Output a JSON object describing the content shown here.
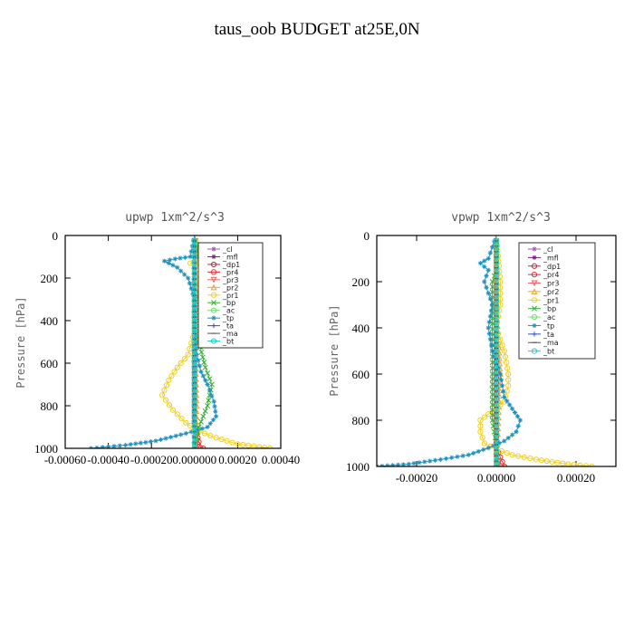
{
  "page_title": "taus_oob  BUDGET at25E,0N",
  "chart_data": [
    {
      "type": "line",
      "title": "upwp   1xm^2/s^3",
      "ylabel": "Pressure [hPa]",
      "xlim": [
        -0.0006,
        0.0004
      ],
      "ylim": [
        1000,
        0
      ],
      "x_ticks": [
        -0.0006,
        -0.0004,
        -0.0002,
        0.0,
        0.0002,
        0.0004
      ],
      "x_tick_labels": [
        "-0.00060",
        "-0.00040",
        "-0.00020",
        "0.000000",
        "0.00020",
        "0.00040"
      ],
      "y_ticks": [
        0,
        200,
        400,
        600,
        800,
        1000
      ],
      "y_tick_labels": [
        "0",
        "200",
        "400",
        "600",
        "800",
        "1000"
      ],
      "legend_position": "top-right",
      "series": [
        {
          "name": "_cl",
          "color": "#9b59b6",
          "marker": "*",
          "points": [
            [
              0,
              1000
            ],
            [
              0,
              0
            ]
          ]
        },
        {
          "name": "_mfl",
          "color": "#7a1f7a",
          "marker": "*",
          "points": [
            [
              0,
              1000
            ],
            [
              0,
              0
            ]
          ]
        },
        {
          "name": "_dp1",
          "color": "#b03040",
          "marker": "o",
          "points": [
            [
              2e-05,
              1000
            ],
            [
              1e-05,
              960
            ],
            [
              0,
              900
            ],
            [
              0,
              0
            ]
          ]
        },
        {
          "name": "_pr4",
          "color": "#e03030",
          "marker": "o",
          "points": [
            [
              4e-05,
              1000
            ],
            [
              2e-05,
              970
            ],
            [
              1e-05,
              930
            ],
            [
              0,
              880
            ],
            [
              0,
              0
            ]
          ]
        },
        {
          "name": "_pr3",
          "color": "#f06060",
          "marker": "v",
          "points": [
            [
              2e-05,
              1000
            ],
            [
              0,
              950
            ],
            [
              0,
              0
            ]
          ]
        },
        {
          "name": "_pr2",
          "color": "#f0a030",
          "marker": "^",
          "points": [
            [
              0,
              1000
            ],
            [
              1e-05,
              800
            ],
            [
              0,
              400
            ],
            [
              3e-05,
              160
            ],
            [
              6e-05,
              130
            ],
            [
              2e-05,
              100
            ],
            [
              0,
              0
            ]
          ]
        },
        {
          "name": "_pr1",
          "color": "#f0d020",
          "marker": "o",
          "points": [
            [
              0.00035,
              1000
            ],
            [
              0.0002,
              980
            ],
            [
              0.0001,
              950
            ],
            [
              2e-05,
              920
            ],
            [
              -4e-05,
              880
            ],
            [
              -0.0001,
              820
            ],
            [
              -0.00015,
              750
            ],
            [
              -0.00012,
              680
            ],
            [
              -8e-05,
              620
            ],
            [
              -3e-05,
              560
            ],
            [
              0,
              450
            ],
            [
              0,
              250
            ],
            [
              2e-05,
              180
            ],
            [
              5e-05,
              150
            ],
            [
              -2e-05,
              130
            ],
            [
              3e-05,
              110
            ],
            [
              0,
              0
            ]
          ]
        },
        {
          "name": "_bp",
          "color": "#30b030",
          "marker": "x",
          "points": [
            [
              0,
              1000
            ],
            [
              2e-05,
              900
            ],
            [
              6e-05,
              800
            ],
            [
              8e-05,
              700
            ],
            [
              5e-05,
              620
            ],
            [
              2e-05,
              500
            ],
            [
              2e-05,
              300
            ],
            [
              5e-05,
              150
            ],
            [
              2e-05,
              100
            ],
            [
              0,
              0
            ]
          ]
        },
        {
          "name": "_ac",
          "color": "#70e070",
          "marker": "o",
          "points": [
            [
              0,
              1000
            ],
            [
              0,
              0
            ]
          ]
        },
        {
          "name": "_tp",
          "color": "#2090c0",
          "marker": "*",
          "points": [
            [
              -0.00048,
              1000
            ],
            [
              -0.00032,
              985
            ],
            [
              -0.00018,
              965
            ],
            [
              -4e-05,
              930
            ],
            [
              6e-05,
              900
            ],
            [
              0.0001,
              850
            ],
            [
              9e-05,
              780
            ],
            [
              6e-05,
              700
            ],
            [
              3e-05,
              640
            ],
            [
              1e-05,
              560
            ],
            [
              0,
              450
            ],
            [
              0,
              300
            ],
            [
              -3e-05,
              200
            ],
            [
              -8e-05,
              150
            ],
            [
              -0.00012,
              130
            ],
            [
              -0.00014,
              120
            ],
            [
              -9e-05,
              110
            ],
            [
              -2e-05,
              100
            ],
            [
              0,
              0
            ]
          ]
        },
        {
          "name": "_ta",
          "color": "#3050d0",
          "marker": "+",
          "points": [
            [
              0,
              1000
            ],
            [
              0,
              0
            ]
          ]
        },
        {
          "name": "_ma",
          "color": "#505050",
          "marker": "-",
          "points": [
            [
              0,
              1000
            ],
            [
              0,
              0
            ]
          ]
        },
        {
          "name": "_bt",
          "color": "#20d0d0",
          "marker": "o",
          "points": [
            [
              0,
              1000
            ],
            [
              0,
              0
            ]
          ]
        }
      ]
    },
    {
      "type": "line",
      "title": "vpwp   1xm^2/s^3",
      "ylabel": "Pressure [hPa]",
      "xlim": [
        -0.0003,
        0.0003
      ],
      "ylim": [
        1000,
        0
      ],
      "x_ticks": [
        -0.0002,
        0.0,
        0.0002
      ],
      "x_tick_labels": [
        "-0.00020",
        "0.00000",
        "0.00020"
      ],
      "y_ticks": [
        0,
        200,
        400,
        600,
        800,
        1000
      ],
      "y_tick_labels": [
        "0",
        "200",
        "400",
        "600",
        "800",
        "1000"
      ],
      "legend_position": "top-right",
      "series": [
        {
          "name": "_cl",
          "color": "#9b59b6",
          "marker": "*",
          "points": [
            [
              0,
              1000
            ],
            [
              0,
              0
            ]
          ]
        },
        {
          "name": "_mfl",
          "color": "#7a1f7a",
          "marker": "*",
          "points": [
            [
              0,
              1000
            ],
            [
              0,
              0
            ]
          ]
        },
        {
          "name": "_dp1",
          "color": "#b03040",
          "marker": "o",
          "points": [
            [
              1e-05,
              1000
            ],
            [
              0,
              950
            ],
            [
              0,
              0
            ]
          ]
        },
        {
          "name": "_pr4",
          "color": "#e03030",
          "marker": "o",
          "points": [
            [
              2e-05,
              1000
            ],
            [
              1e-05,
              960
            ],
            [
              0,
              920
            ],
            [
              0,
              0
            ]
          ]
        },
        {
          "name": "_pr3",
          "color": "#f06060",
          "marker": "v",
          "points": [
            [
              1e-05,
              1000
            ],
            [
              0,
              960
            ],
            [
              0,
              0
            ]
          ]
        },
        {
          "name": "_pr2",
          "color": "#f0a030",
          "marker": "^",
          "points": [
            [
              0,
              1000
            ],
            [
              1e-05,
              600
            ],
            [
              0,
              300
            ],
            [
              0,
              0
            ]
          ]
        },
        {
          "name": "_pr1",
          "color": "#f0d020",
          "marker": "o",
          "points": [
            [
              0.00024,
              1000
            ],
            [
              0.00018,
              990
            ],
            [
              0.0001,
              970
            ],
            [
              4e-05,
              950
            ],
            [
              0,
              925
            ],
            [
              -3e-05,
              900
            ],
            [
              -4e-05,
              850
            ],
            [
              -4e-05,
              800
            ],
            [
              -1e-05,
              760
            ],
            [
              2e-05,
              720
            ],
            [
              3e-05,
              650
            ],
            [
              3e-05,
              600
            ],
            [
              2e-05,
              500
            ],
            [
              0,
              400
            ],
            [
              1e-05,
              300
            ],
            [
              1e-05,
              200
            ],
            [
              0,
              0
            ]
          ]
        },
        {
          "name": "_bp",
          "color": "#30b030",
          "marker": "x",
          "points": [
            [
              0,
              1000
            ],
            [
              0,
              900
            ],
            [
              -1e-05,
              800
            ],
            [
              -1e-05,
              600
            ],
            [
              -1e-05,
              450
            ],
            [
              -1e-05,
              200
            ],
            [
              0,
              150
            ],
            [
              0,
              0
            ]
          ]
        },
        {
          "name": "_ac",
          "color": "#70e070",
          "marker": "o",
          "points": [
            [
              0,
              1000
            ],
            [
              0,
              0
            ]
          ]
        },
        {
          "name": "_tp",
          "color": "#2090c0",
          "marker": "*",
          "points": [
            [
              -0.0003,
              1000
            ],
            [
              -0.00022,
              990
            ],
            [
              -0.00014,
              970
            ],
            [
              -7e-05,
              950
            ],
            [
              -2e-05,
              920
            ],
            [
              2e-05,
              890
            ],
            [
              5e-05,
              850
            ],
            [
              6e-05,
              800
            ],
            [
              4e-05,
              750
            ],
            [
              2e-05,
              700
            ],
            [
              1e-05,
              600
            ],
            [
              -1e-05,
              500
            ],
            [
              -2e-05,
              400
            ],
            [
              -1e-05,
              300
            ],
            [
              -3e-05,
              200
            ],
            [
              -2e-05,
              150
            ],
            [
              -4e-05,
              120
            ],
            [
              -2e-05,
              100
            ],
            [
              0,
              0
            ]
          ]
        },
        {
          "name": "_ta",
          "color": "#3050d0",
          "marker": "+",
          "points": [
            [
              0,
              1000
            ],
            [
              0,
              0
            ]
          ]
        },
        {
          "name": "_ma",
          "color": "#505050",
          "marker": "-",
          "points": [
            [
              0,
              1000
            ],
            [
              0,
              0
            ]
          ]
        },
        {
          "name": "_bt",
          "color": "#20d0d0",
          "marker": "o",
          "points": [
            [
              0,
              1000
            ],
            [
              0,
              0
            ]
          ]
        }
      ]
    }
  ]
}
